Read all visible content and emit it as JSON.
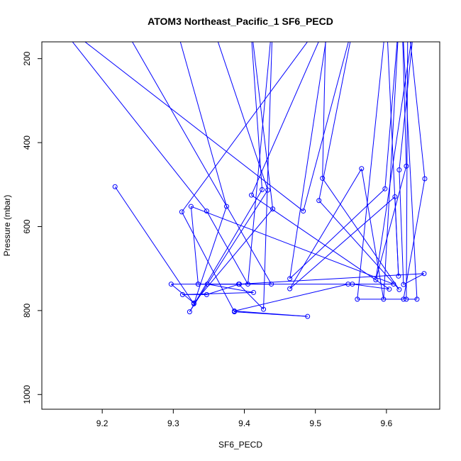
{
  "chart_data": {
    "type": "line",
    "title": "ATOM3 Northeast_Pacific_1 SF6_PECD",
    "xlabel": "SF6_PECD",
    "ylabel": "Pressure (mbar)",
    "xlim": [
      9.115,
      9.675
    ],
    "ylim": [
      1035,
      160
    ],
    "y_inverted": true,
    "x_ticks": [
      9.2,
      9.3,
      9.4,
      9.5,
      9.6
    ],
    "x_tick_labels": [
      "9.2",
      "9.3",
      "9.4",
      "9.5",
      "9.6"
    ],
    "y_ticks": [
      200,
      400,
      600,
      800,
      1000
    ],
    "y_tick_labels": [
      "200",
      "400",
      "600",
      "800",
      "1000"
    ],
    "grid": false,
    "series_color": "#0000ff",
    "series": [
      {
        "points": [
          [
            9.218,
            505
          ],
          [
            9.329,
            784
          ],
          [
            9.375,
            552
          ],
          [
            9.3,
            100
          ],
          [
            9.355,
            120
          ],
          [
            9.433,
            513
          ],
          [
            9.323,
            803
          ],
          [
            9.425,
            512
          ],
          [
            9.408,
            100
          ],
          [
            9.44,
            558
          ],
          [
            9.329,
            782
          ],
          [
            9.297,
            737
          ],
          [
            9.552,
            737
          ],
          [
            9.604,
            749
          ],
          [
            9.41,
            525
          ],
          [
            9.52,
            100
          ],
          [
            9.464,
            724
          ],
          [
            9.598,
            510
          ],
          [
            9.618,
            100
          ],
          [
            9.596,
            773
          ],
          [
            9.565,
            462
          ],
          [
            9.464,
            748
          ],
          [
            9.612,
            529
          ],
          [
            9.617,
            718
          ],
          [
            9.6,
            100
          ],
          [
            9.559,
            773
          ],
          [
            9.624,
            773
          ],
          [
            9.654,
            486
          ],
          [
            9.63,
            100
          ],
          [
            9.628,
            773
          ],
          [
            9.643,
            773
          ],
          [
            9.622,
            100
          ],
          [
            9.628,
            456
          ],
          [
            9.585,
            727
          ],
          [
            9.64,
            100
          ],
          [
            9.618,
            465
          ],
          [
            9.624,
            738
          ],
          [
            9.653,
            712
          ],
          [
            9.393,
            737
          ],
          [
            9.347,
            762
          ],
          [
            9.313,
            762
          ],
          [
            9.413,
            757
          ],
          [
            9.348,
            737
          ],
          [
            9.335,
            737
          ],
          [
            9.392,
            737
          ],
          [
            9.427,
            797
          ],
          [
            9.44,
            100
          ],
          [
            9.405,
            737
          ],
          [
            9.347,
            563
          ],
          [
            9.13,
            100
          ],
          [
            9.483,
            563
          ],
          [
            9.556,
            100
          ],
          [
            9.505,
            538
          ],
          [
            9.618,
            750
          ],
          [
            9.51,
            485
          ],
          [
            9.515,
            100
          ],
          [
            9.312,
            565
          ],
          [
            9.386,
            803
          ],
          [
            9.489,
            814
          ],
          [
            9.386,
            801
          ],
          [
            9.546,
            737
          ],
          [
            9.61,
            737
          ],
          [
            9.325,
            552
          ],
          [
            9.335,
            737
          ],
          [
            9.438,
            737
          ],
          [
            9.222,
            100
          ]
        ]
      }
    ]
  }
}
